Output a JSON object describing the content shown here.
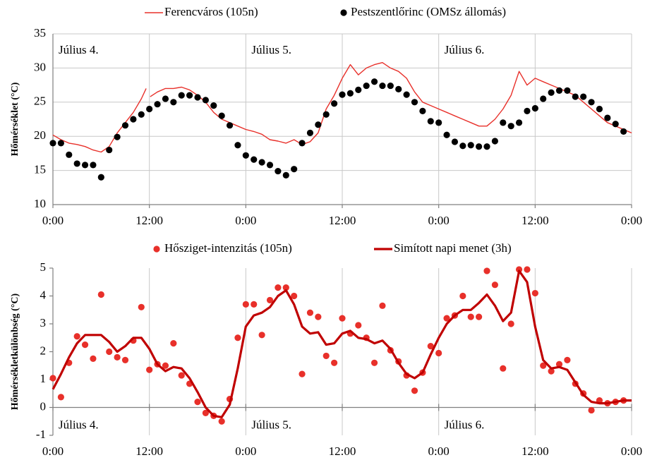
{
  "chart_data": [
    {
      "type": "line",
      "ylabel": "Hőmérséklet (°C)",
      "annotations": [
        "Július 4.",
        "Július 5.",
        "Július 6."
      ],
      "xlim": [
        0,
        72
      ],
      "ylim": [
        10,
        35
      ],
      "xticks": [
        {
          "value": 0,
          "label": "0:00"
        },
        {
          "value": 12,
          "label": "12:00"
        },
        {
          "value": 24,
          "label": "0:00"
        },
        {
          "value": 36,
          "label": "12:00"
        },
        {
          "value": 48,
          "label": "0:00"
        },
        {
          "value": 60,
          "label": "12:00"
        },
        {
          "value": 72,
          "label": "0:00"
        }
      ],
      "yticks": [
        10,
        15,
        20,
        25,
        30,
        35
      ],
      "hgrid": true,
      "vgrid": true,
      "legend": "top",
      "series": [
        {
          "name": "Ferencváros (105n)",
          "type": "line",
          "color": "#e8302a",
          "x": [
            0,
            1,
            2,
            3,
            4,
            5,
            6,
            7,
            8,
            9,
            10,
            11,
            11.6,
            11.8,
            12.1,
            13,
            14,
            15,
            16,
            17,
            18,
            19,
            20,
            21,
            22,
            23,
            24,
            25,
            26,
            27,
            28,
            29,
            30,
            31,
            32,
            33,
            34,
            35,
            36,
            37,
            38,
            39,
            40,
            41,
            42,
            43,
            44,
            45,
            46,
            47,
            48,
            49,
            50,
            51,
            52,
            53,
            54,
            55,
            56,
            57,
            58,
            59,
            60,
            61,
            62,
            63,
            64,
            65,
            66,
            67,
            68,
            69,
            70,
            71,
            72
          ],
          "values": [
            20.2,
            19.5,
            19,
            18.8,
            18.5,
            18,
            17.7,
            18.5,
            20.5,
            22,
            23.5,
            25.5,
            27,
            null,
            25.8,
            26.5,
            27,
            27,
            27.2,
            26.8,
            26,
            25,
            23.5,
            22.5,
            22,
            21.5,
            21,
            20.7,
            20.3,
            19.5,
            19.3,
            19,
            19.5,
            18.8,
            19.2,
            20.5,
            24,
            26,
            28.5,
            30.5,
            29,
            30,
            30.5,
            30.8,
            30,
            29.5,
            28.5,
            26.5,
            25,
            24.5,
            24,
            23.5,
            23,
            22.5,
            22,
            21.5,
            21.5,
            22.5,
            24,
            26,
            29.5,
            27.5,
            28.5,
            28,
            27.5,
            27,
            26.5,
            26,
            25,
            24,
            23,
            22,
            21.5,
            21,
            20.5
          ]
        },
        {
          "name": "Pestszentlőrinc (OMSz állomás)",
          "type": "scatter",
          "color": "#000000",
          "x": [
            0,
            1,
            2,
            3,
            4,
            5,
            6,
            7,
            8,
            9,
            10,
            11,
            12,
            13,
            14,
            15,
            16,
            17,
            18,
            19,
            20,
            21,
            22,
            23,
            24,
            25,
            26,
            27,
            28,
            29,
            30,
            31,
            32,
            33,
            34,
            35,
            36,
            37,
            38,
            39,
            40,
            41,
            42,
            43,
            44,
            45,
            46,
            47,
            48,
            49,
            50,
            51,
            52,
            53,
            54,
            55,
            56,
            57,
            58,
            59,
            60,
            61,
            62,
            63,
            64,
            65,
            66,
            67,
            68,
            69,
            70,
            71
          ],
          "values": [
            19,
            19,
            17.3,
            16,
            15.8,
            15.8,
            14,
            18,
            19.9,
            21.6,
            22.5,
            23.2,
            24,
            24.7,
            25.5,
            25,
            26,
            26,
            25.7,
            25.3,
            24.5,
            23,
            21.6,
            18.7,
            17.2,
            16.6,
            16.2,
            15.8,
            14.9,
            14.3,
            15.2,
            19,
            20.5,
            21.7,
            23.2,
            24.8,
            26.1,
            26.3,
            26.8,
            27.4,
            28,
            27.4,
            27.4,
            26.9,
            26.1,
            25,
            23.7,
            22.2,
            22,
            20.2,
            19.2,
            18.6,
            18.7,
            18.5,
            18.5,
            19.3,
            22,
            21.5,
            22,
            23.7,
            24.1,
            25.5,
            26.4,
            26.7,
            26.7,
            25.8,
            25.8,
            25,
            24,
            22.7,
            21.8,
            20.7
          ]
        }
      ]
    },
    {
      "type": "line",
      "ylabel": "Hőmérsékletkülönbség (°C)",
      "annotations": [
        "Július 4.",
        "Július 5.",
        "Július 6."
      ],
      "xlim": [
        0,
        72
      ],
      "ylim": [
        -1,
        5
      ],
      "xticks": [
        {
          "value": 0,
          "label": "0:00"
        },
        {
          "value": 12,
          "label": "12:00"
        },
        {
          "value": 24,
          "label": "0:00"
        },
        {
          "value": 36,
          "label": "12:00"
        },
        {
          "value": 48,
          "label": "0:00"
        },
        {
          "value": 60,
          "label": "12:00"
        },
        {
          "value": 72,
          "label": "0:00"
        }
      ],
      "yticks": [
        -1,
        0,
        1,
        2,
        3,
        4,
        5
      ],
      "hgrid": false,
      "vgrid": true,
      "legend": "top",
      "series": [
        {
          "name": "Hősziget-intenzitás (105n)",
          "type": "scatter",
          "color": "#e8302a",
          "x": [
            0,
            1,
            2,
            3,
            4,
            5,
            6,
            7,
            8,
            9,
            10,
            11,
            12,
            13,
            14,
            15,
            16,
            17,
            18,
            19,
            20,
            21,
            22,
            23,
            24,
            25,
            26,
            27,
            28,
            29,
            30,
            31,
            32,
            33,
            34,
            35,
            36,
            37,
            38,
            39,
            40,
            41,
            42,
            43,
            44,
            45,
            46,
            47,
            48,
            49,
            50,
            51,
            52,
            53,
            54,
            55,
            56,
            57,
            58,
            59,
            60,
            61,
            62,
            63,
            64,
            65,
            66,
            67,
            68,
            69,
            70,
            71
          ],
          "values": [
            1.05,
            0.37,
            1.6,
            2.55,
            2.25,
            1.75,
            4.05,
            2,
            1.8,
            1.7,
            2.4,
            3.6,
            1.35,
            1.55,
            1.5,
            2.3,
            1.15,
            0.85,
            0.2,
            -0.2,
            -0.3,
            -0.5,
            0.3,
            2.5,
            3.7,
            3.7,
            2.6,
            3.85,
            4.3,
            4.3,
            4,
            1.2,
            3.4,
            3.25,
            1.85,
            1.6,
            3.2,
            2.65,
            2.95,
            2.5,
            1.6,
            3.65,
            2.05,
            1.65,
            1.15,
            0.6,
            1.25,
            2.2,
            1.95,
            3.2,
            3.3,
            4,
            3.25,
            3.25,
            4.9,
            4.4,
            1.4,
            3,
            4.95,
            4.95,
            4.1,
            1.5,
            1.3,
            1.55,
            1.7,
            0.85,
            0.5,
            -0.1,
            0.25,
            0.15,
            0.2,
            0.25
          ]
        },
        {
          "name": "Simított napi menet (3h)",
          "type": "line",
          "color": "#c00000",
          "x": [
            0,
            1,
            2,
            3,
            4,
            5,
            6,
            7,
            8,
            9,
            10,
            11,
            12,
            13,
            14,
            15,
            16,
            17,
            18,
            19,
            20,
            21,
            22,
            23,
            24,
            25,
            26,
            27,
            28,
            29,
            30,
            31,
            32,
            33,
            34,
            35,
            36,
            37,
            38,
            39,
            40,
            41,
            42,
            43,
            44,
            45,
            46,
            47,
            48,
            49,
            50,
            51,
            52,
            53,
            54,
            55,
            56,
            57,
            58,
            59,
            60,
            61,
            62,
            63,
            64,
            65,
            66,
            67,
            68,
            69,
            70,
            71,
            72
          ],
          "values": [
            0.65,
            1.2,
            1.8,
            2.3,
            2.6,
            2.6,
            2.6,
            2.35,
            2,
            2.2,
            2.5,
            2.5,
            2.1,
            1.55,
            1.3,
            1.45,
            1.4,
            1.05,
            0.55,
            0,
            -0.3,
            -0.35,
            0.1,
            1.4,
            2.9,
            3.3,
            3.4,
            3.6,
            4,
            4.2,
            3.7,
            2.9,
            2.65,
            2.7,
            2.25,
            2.3,
            2.65,
            2.75,
            2.5,
            2.45,
            2.3,
            2.4,
            2.1,
            1.6,
            1.2,
            1.05,
            1.25,
            1.9,
            2.5,
            3,
            3.3,
            3.5,
            3.5,
            3.75,
            4.05,
            3.65,
            3.1,
            3.4,
            4.9,
            4.5,
            2.9,
            1.7,
            1.4,
            1.45,
            1.35,
            0.9,
            0.45,
            0.2,
            0.15,
            0.15,
            0.2,
            0.25,
            0.25
          ]
        }
      ]
    }
  ]
}
